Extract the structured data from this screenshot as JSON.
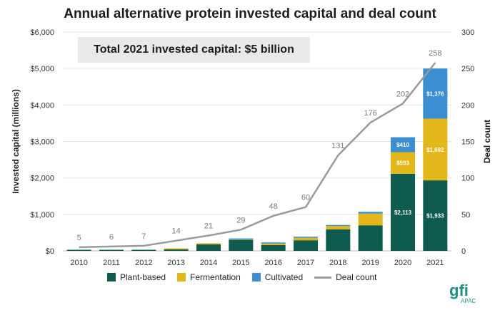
{
  "header": {
    "title": "Annual alternative protein invested capital and deal count",
    "total_banner": "Total 2021 invested capital: $5 billion"
  },
  "logo": {
    "mark": "gfi",
    "sub": "APAC"
  },
  "colors": {
    "plant_based": "#0f5b4f",
    "fermentation": "#e3b71a",
    "cultivated": "#3b8ed1",
    "deal_line": "#9a9a9a"
  },
  "chart_data": {
    "type": "bar",
    "title": "Annual alternative protein invested capital and deal count",
    "ylabel": "Invested capital (millions)",
    "y2label": "Deal count",
    "ylim": [
      0,
      6000
    ],
    "y2lim": [
      0,
      300
    ],
    "yticks": [
      "$0",
      "$1,000",
      "$2,000",
      "$3,000",
      "$4,000",
      "$5,000",
      "$6,000"
    ],
    "y2ticks": [
      "0",
      "50",
      "100",
      "150",
      "200",
      "250",
      "300"
    ],
    "categories": [
      "2010",
      "2011",
      "2012",
      "2013",
      "2014",
      "2015",
      "2016",
      "2017",
      "2018",
      "2019",
      "2020",
      "2021"
    ],
    "stacked": true,
    "series": [
      {
        "name": "Plant-based",
        "color": "#0f5b4f",
        "values": [
          15,
          5,
          10,
          40,
          180,
          300,
          160,
          290,
          590,
          700,
          2113,
          1933
        ],
        "labels": [
          "",
          "",
          "",
          "",
          "",
          "",
          "",
          "",
          "",
          "",
          "$2,113",
          "$1,933"
        ]
      },
      {
        "name": "Fermentation",
        "color": "#e3b71a",
        "values": [
          0,
          0,
          0,
          5,
          10,
          10,
          40,
          70,
          90,
          320,
          593,
          1692
        ],
        "labels": [
          "",
          "",
          "",
          "",
          "",
          "",
          "",
          "",
          "",
          "",
          "$593",
          "$1,692"
        ]
      },
      {
        "name": "Cultivated",
        "color": "#3b8ed1",
        "values": [
          0,
          0,
          0,
          0,
          0,
          5,
          10,
          20,
          30,
          50,
          410,
          1376
        ],
        "labels": [
          "",
          "",
          "",
          "",
          "",
          "",
          "",
          "",
          "",
          "",
          "$410",
          "$1,376"
        ]
      }
    ],
    "line": {
      "name": "Deal count",
      "color": "#9a9a9a",
      "values": [
        5,
        6,
        7,
        14,
        21,
        29,
        48,
        60,
        131,
        176,
        202,
        258
      ]
    },
    "legend": [
      "Plant-based",
      "Fermentation",
      "Cultivated",
      "Deal count"
    ],
    "legend_position": "bottom",
    "grid": true
  }
}
